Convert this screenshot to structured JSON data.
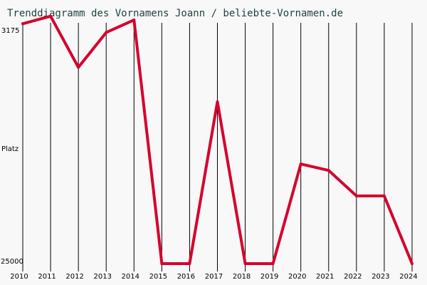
{
  "chart_data": {
    "type": "line",
    "title": "Trenddiagramm des Vornamens Joann / beliebte-Vornamen.de",
    "ylabel": "Platz",
    "y_tick_top": "3175",
    "y_tick_bottom": "25000",
    "ylim": [
      25000,
      3175
    ],
    "y_scale": "log",
    "y_reversed": true,
    "categories": [
      "2010",
      "2011",
      "2012",
      "2013",
      "2014",
      "2015",
      "2016",
      "2017",
      "2018",
      "2019",
      "2020",
      "2021",
      "2022",
      "2023",
      "2024"
    ],
    "values": [
      3200,
      3000,
      4650,
      3450,
      3100,
      25000,
      25000,
      6250,
      25000,
      25000,
      10650,
      11250,
      14000,
      14000,
      25000
    ],
    "grid": "vertical",
    "line_color": "#d6002e"
  }
}
